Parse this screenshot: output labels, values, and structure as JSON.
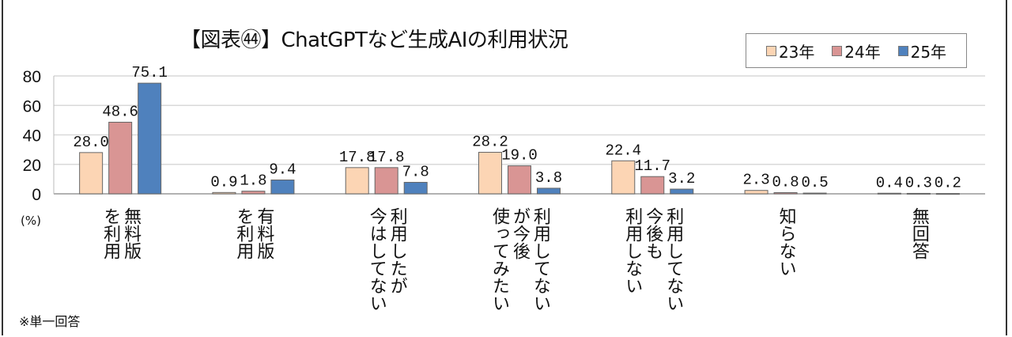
{
  "chart_data": {
    "type": "bar",
    "title": "【図表㊹】ChatGPTなど生成AIの利用状況",
    "unit_label": "(%)",
    "note": "※単一回答",
    "categories": [
      "無料版\nを利用",
      "有料版\nを利用",
      "利用したが\n今はしてない",
      "利用してない\nが今後\n使ってみたい",
      "利用してない\n今後も\n利用しない",
      "知らない",
      "無回答"
    ],
    "series": [
      {
        "name": "23年",
        "color": "#fcd5b4",
        "values": [
          28.0,
          0.9,
          17.8,
          28.2,
          22.4,
          2.3,
          0.4
        ]
      },
      {
        "name": "24年",
        "color": "#d99594",
        "values": [
          48.6,
          1.8,
          17.8,
          19.0,
          11.7,
          0.8,
          0.3
        ]
      },
      {
        "name": "25年",
        "color": "#4f81bd",
        "values": [
          75.1,
          9.4,
          7.8,
          3.8,
          3.2,
          0.5,
          0.2
        ]
      }
    ],
    "ylim": [
      0,
      80
    ],
    "yticks": [
      "0",
      "20",
      "40",
      "60",
      "80"
    ],
    "grid": true,
    "legend": "top-right"
  }
}
